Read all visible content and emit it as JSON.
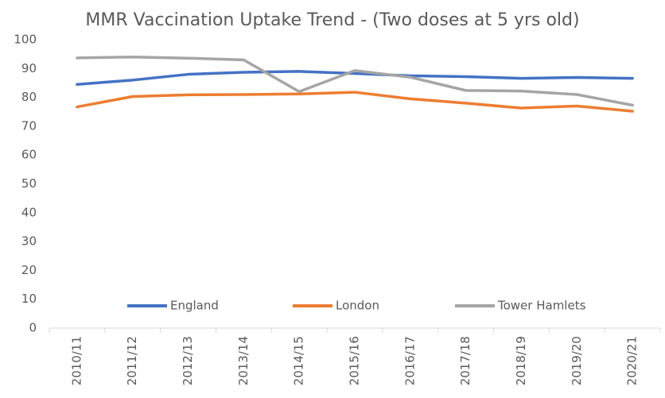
{
  "chart_data": {
    "type": "line",
    "title": "MMR Vaccination Uptake Trend - (Two doses at 5 yrs old)",
    "categories": [
      "2010/11",
      "2011/12",
      "2012/13",
      "2013/14",
      "2014/15",
      "2015/16",
      "2016/17",
      "2017/18",
      "2018/19",
      "2019/20",
      "2020/21"
    ],
    "series": [
      {
        "name": "England",
        "color": "#4472c4",
        "values": [
          84.5,
          86,
          88,
          88.7,
          89,
          88.3,
          87.5,
          87.2,
          86.6,
          86.9,
          86.6
        ]
      },
      {
        "name": "London",
        "color": "#ed7d31",
        "values": [
          76.7,
          80.3,
          80.9,
          81,
          81.2,
          81.8,
          79.5,
          78,
          76.3,
          77,
          75.2
        ]
      },
      {
        "name": "Tower Hamlets",
        "color": "#a5a5a5",
        "values": [
          93.7,
          94,
          93.6,
          93,
          82,
          89.3,
          87,
          82.4,
          82.2,
          81,
          77.3
        ]
      }
    ],
    "ylim": [
      0,
      100
    ],
    "yticks": [
      0,
      10,
      20,
      30,
      40,
      50,
      60,
      70,
      80,
      90,
      100
    ],
    "grid": false,
    "legend": "bottom"
  }
}
